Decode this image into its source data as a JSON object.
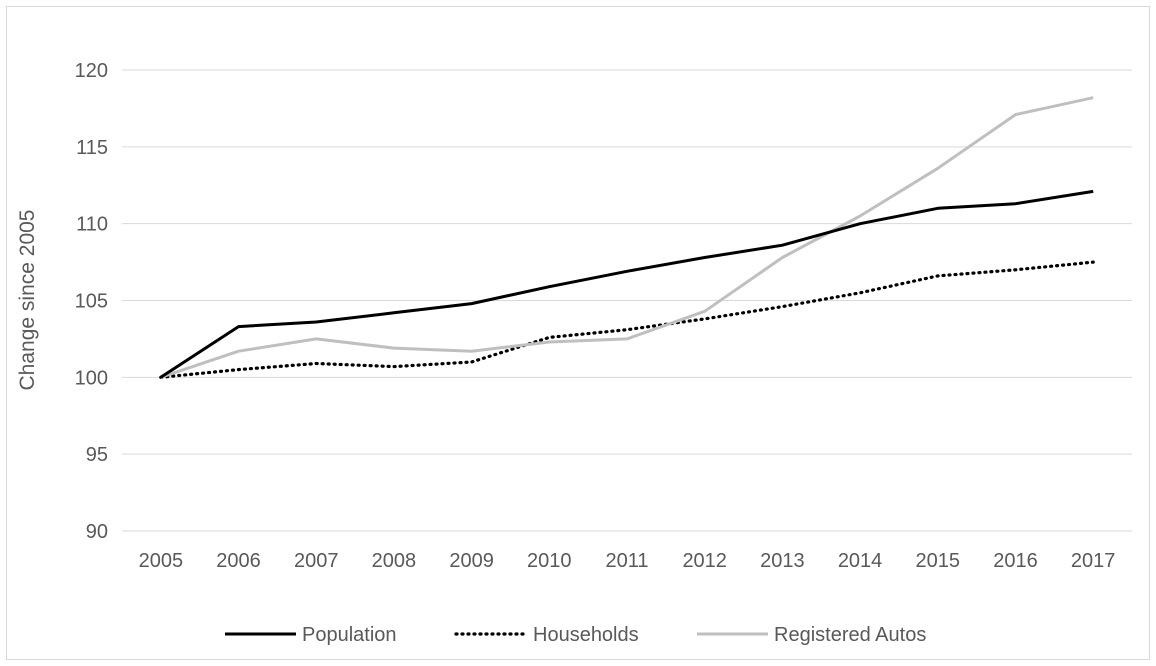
{
  "chart_data": {
    "type": "line",
    "title": "",
    "xlabel": "",
    "ylabel": "Change since 2005",
    "ylim": [
      90,
      120
    ],
    "yticks": [
      90,
      95,
      100,
      105,
      110,
      115,
      120
    ],
    "grid": true,
    "legend_position": "bottom",
    "categories": [
      "2005",
      "2006",
      "2007",
      "2008",
      "2009",
      "2010",
      "2011",
      "2012",
      "2013",
      "2014",
      "2015",
      "2016",
      "2017"
    ],
    "series": [
      {
        "name": "Population",
        "color": "#000000",
        "style": "solid",
        "values": [
          100,
          103.3,
          103.6,
          104.2,
          104.8,
          105.9,
          106.9,
          107.8,
          108.6,
          110.0,
          111.0,
          111.3,
          112.1
        ]
      },
      {
        "name": "Households",
        "color": "#000000",
        "style": "dotted",
        "values": [
          100,
          100.5,
          100.9,
          100.7,
          101.0,
          102.6,
          103.1,
          103.8,
          104.6,
          105.5,
          106.6,
          107.0,
          107.5
        ]
      },
      {
        "name": "Registered Autos",
        "color": "#bfbfbf",
        "style": "solid",
        "values": [
          100,
          101.7,
          102.5,
          101.9,
          101.7,
          102.3,
          102.5,
          104.3,
          107.8,
          110.5,
          113.6,
          117.1,
          118.2
        ]
      }
    ]
  }
}
